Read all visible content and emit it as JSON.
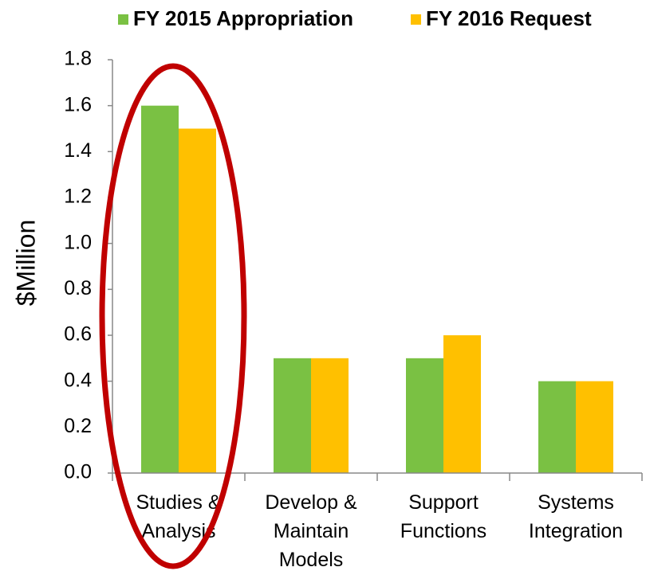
{
  "chart_data": {
    "type": "bar",
    "categories": [
      [
        "Studies &",
        "Analysis"
      ],
      [
        "Develop &",
        "Maintain",
        "Models"
      ],
      [
        "Support",
        "Functions"
      ],
      [
        "Systems",
        "Integration"
      ]
    ],
    "series": [
      {
        "name": "FY 2015 Appropriation",
        "color": "#7ac143",
        "values": [
          1.6,
          0.5,
          0.5,
          0.4
        ]
      },
      {
        "name": "FY 2016 Request",
        "color": "#ffc000",
        "values": [
          1.5,
          0.5,
          0.6,
          0.4
        ]
      }
    ],
    "y_label": "$Million",
    "ylim": [
      0,
      1.8
    ],
    "yticks": [
      {
        "value": 0,
        "label": "0.0"
      },
      0.2,
      0.4,
      0.6,
      0.8,
      {
        "value": 1,
        "label": "1.0"
      },
      1.2,
      1.4,
      1.6,
      1.8
    ],
    "grid": false,
    "legend": "top"
  }
}
